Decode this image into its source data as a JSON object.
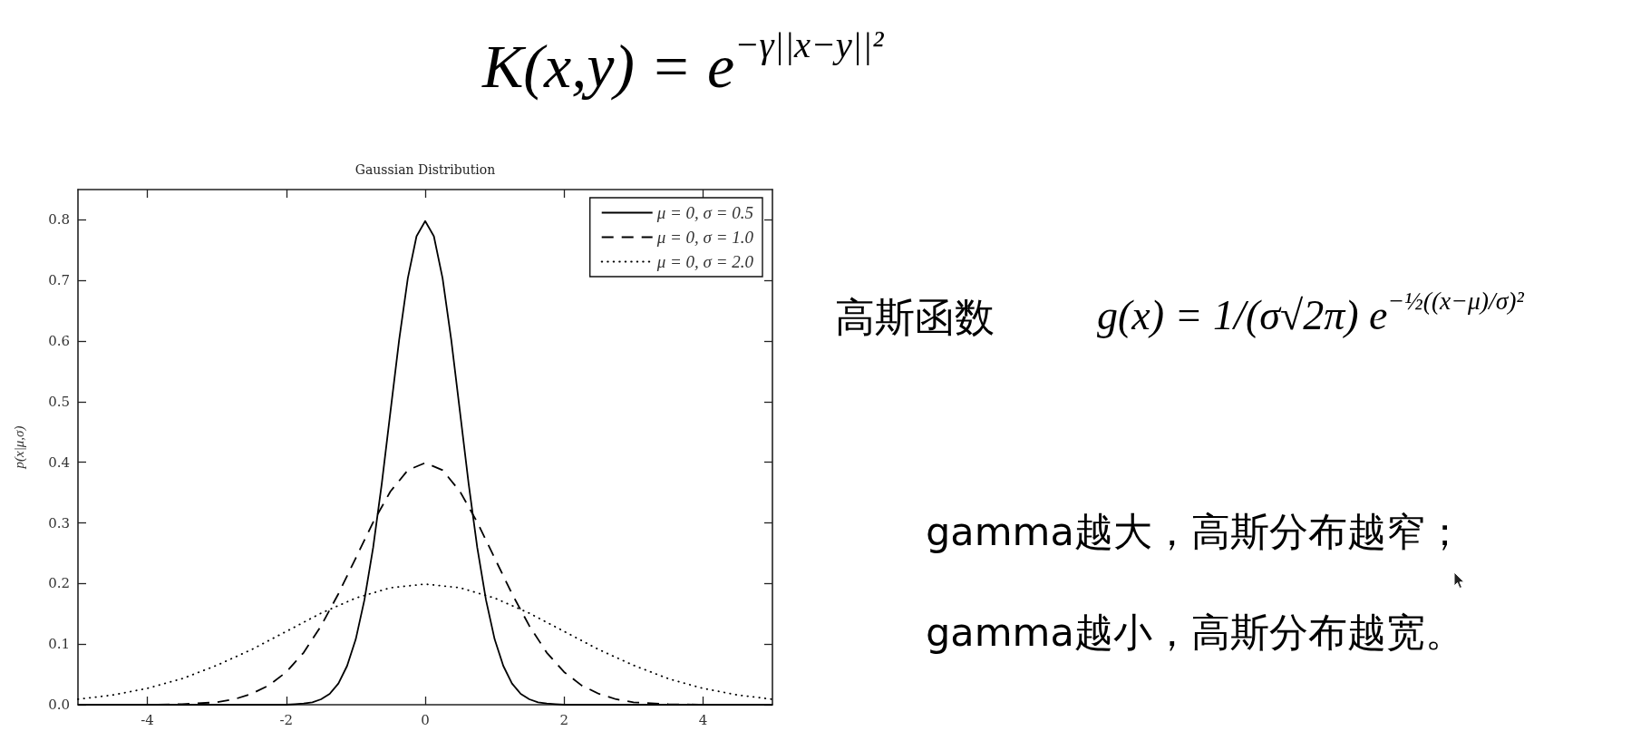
{
  "chart_data": {
    "type": "line",
    "title": "Gaussian Distribution",
    "ylabel": "p(x|μ,σ)",
    "annotations": [
      "K(x,y) = e$^{−γ||x−y||²}$",
      "高斯函数",
      "g(x) = 1/(σ√2π) e$^{−½((x−μ)/σ)²}$",
      "gamma越大，高斯分布越窄；",
      "gamma越小，高斯分布越宽。"
    ],
    "xlim": [
      -5,
      5
    ],
    "xticks": [
      -4,
      -2,
      0,
      2,
      4
    ],
    "ylim": [
      0,
      0.85
    ],
    "yticks": [
      {
        "value": 0,
        "label": "0.0"
      },
      0.1,
      0.2,
      0.3,
      0.4,
      0.5,
      0.6,
      0.7,
      0.8
    ],
    "legend": "top right",
    "marker": "none",
    "series": [
      {
        "name": "μ = 0, σ = 0.5",
        "color": "#000000",
        "line_style": "solid",
        "x": [
          -5,
          -2,
          -1.875,
          -1.75,
          -1.625,
          -1.5,
          -1.375,
          -1.25,
          -1.125,
          -1,
          -0.875,
          -0.75,
          -0.625,
          -0.5,
          -0.375,
          -0.25,
          -0.125,
          0,
          0.125,
          0.25,
          0.375,
          0.5,
          0.625,
          0.75,
          0.875,
          1,
          1.125,
          1.25,
          1.375,
          1.5,
          1.625,
          1.75,
          1.875,
          2,
          5
        ],
        "values": [
          0,
          0,
          0.001,
          0.002,
          0.004,
          0.009,
          0.018,
          0.035,
          0.064,
          0.108,
          0.173,
          0.259,
          0.365,
          0.484,
          0.602,
          0.704,
          0.773,
          0.798,
          0.773,
          0.704,
          0.602,
          0.484,
          0.365,
          0.259,
          0.173,
          0.108,
          0.064,
          0.035,
          0.018,
          0.009,
          0.004,
          0.002,
          0.001,
          0,
          0
        ]
      },
      {
        "name": "μ = 0, σ = 1.0",
        "color": "#000000",
        "line_style": "dashed",
        "x": [
          -5,
          -4.5,
          -4,
          -3.5,
          -3,
          -2.75,
          -2.5,
          -2.25,
          -2,
          -1.75,
          -1.5,
          -1.25,
          -1,
          -0.75,
          -0.5,
          -0.25,
          0,
          0.25,
          0.5,
          0.75,
          1,
          1.25,
          1.5,
          1.75,
          2,
          2.25,
          2.5,
          2.75,
          3,
          3.5,
          4,
          4.5,
          5
        ],
        "values": [
          0,
          0,
          0,
          0.001,
          0.004,
          0.009,
          0.018,
          0.032,
          0.054,
          0.086,
          0.13,
          0.183,
          0.242,
          0.301,
          0.352,
          0.387,
          0.399,
          0.387,
          0.352,
          0.301,
          0.242,
          0.183,
          0.13,
          0.086,
          0.054,
          0.032,
          0.018,
          0.009,
          0.004,
          0.001,
          0,
          0,
          0
        ]
      },
      {
        "name": "μ = 0, σ = 2.0",
        "color": "#000000",
        "line_style": "dotted",
        "x": [
          -5,
          -4.5,
          -4,
          -3.5,
          -3,
          -2.5,
          -2,
          -1.5,
          -1,
          -0.5,
          0,
          0.5,
          1,
          1.5,
          2,
          2.5,
          3,
          3.5,
          4,
          4.5,
          5
        ],
        "values": [
          0.009,
          0.016,
          0.027,
          0.043,
          0.065,
          0.091,
          0.121,
          0.151,
          0.176,
          0.193,
          0.199,
          0.193,
          0.176,
          0.151,
          0.121,
          0.091,
          0.065,
          0.043,
          0.027,
          0.016,
          0.009
        ]
      }
    ]
  }
}
